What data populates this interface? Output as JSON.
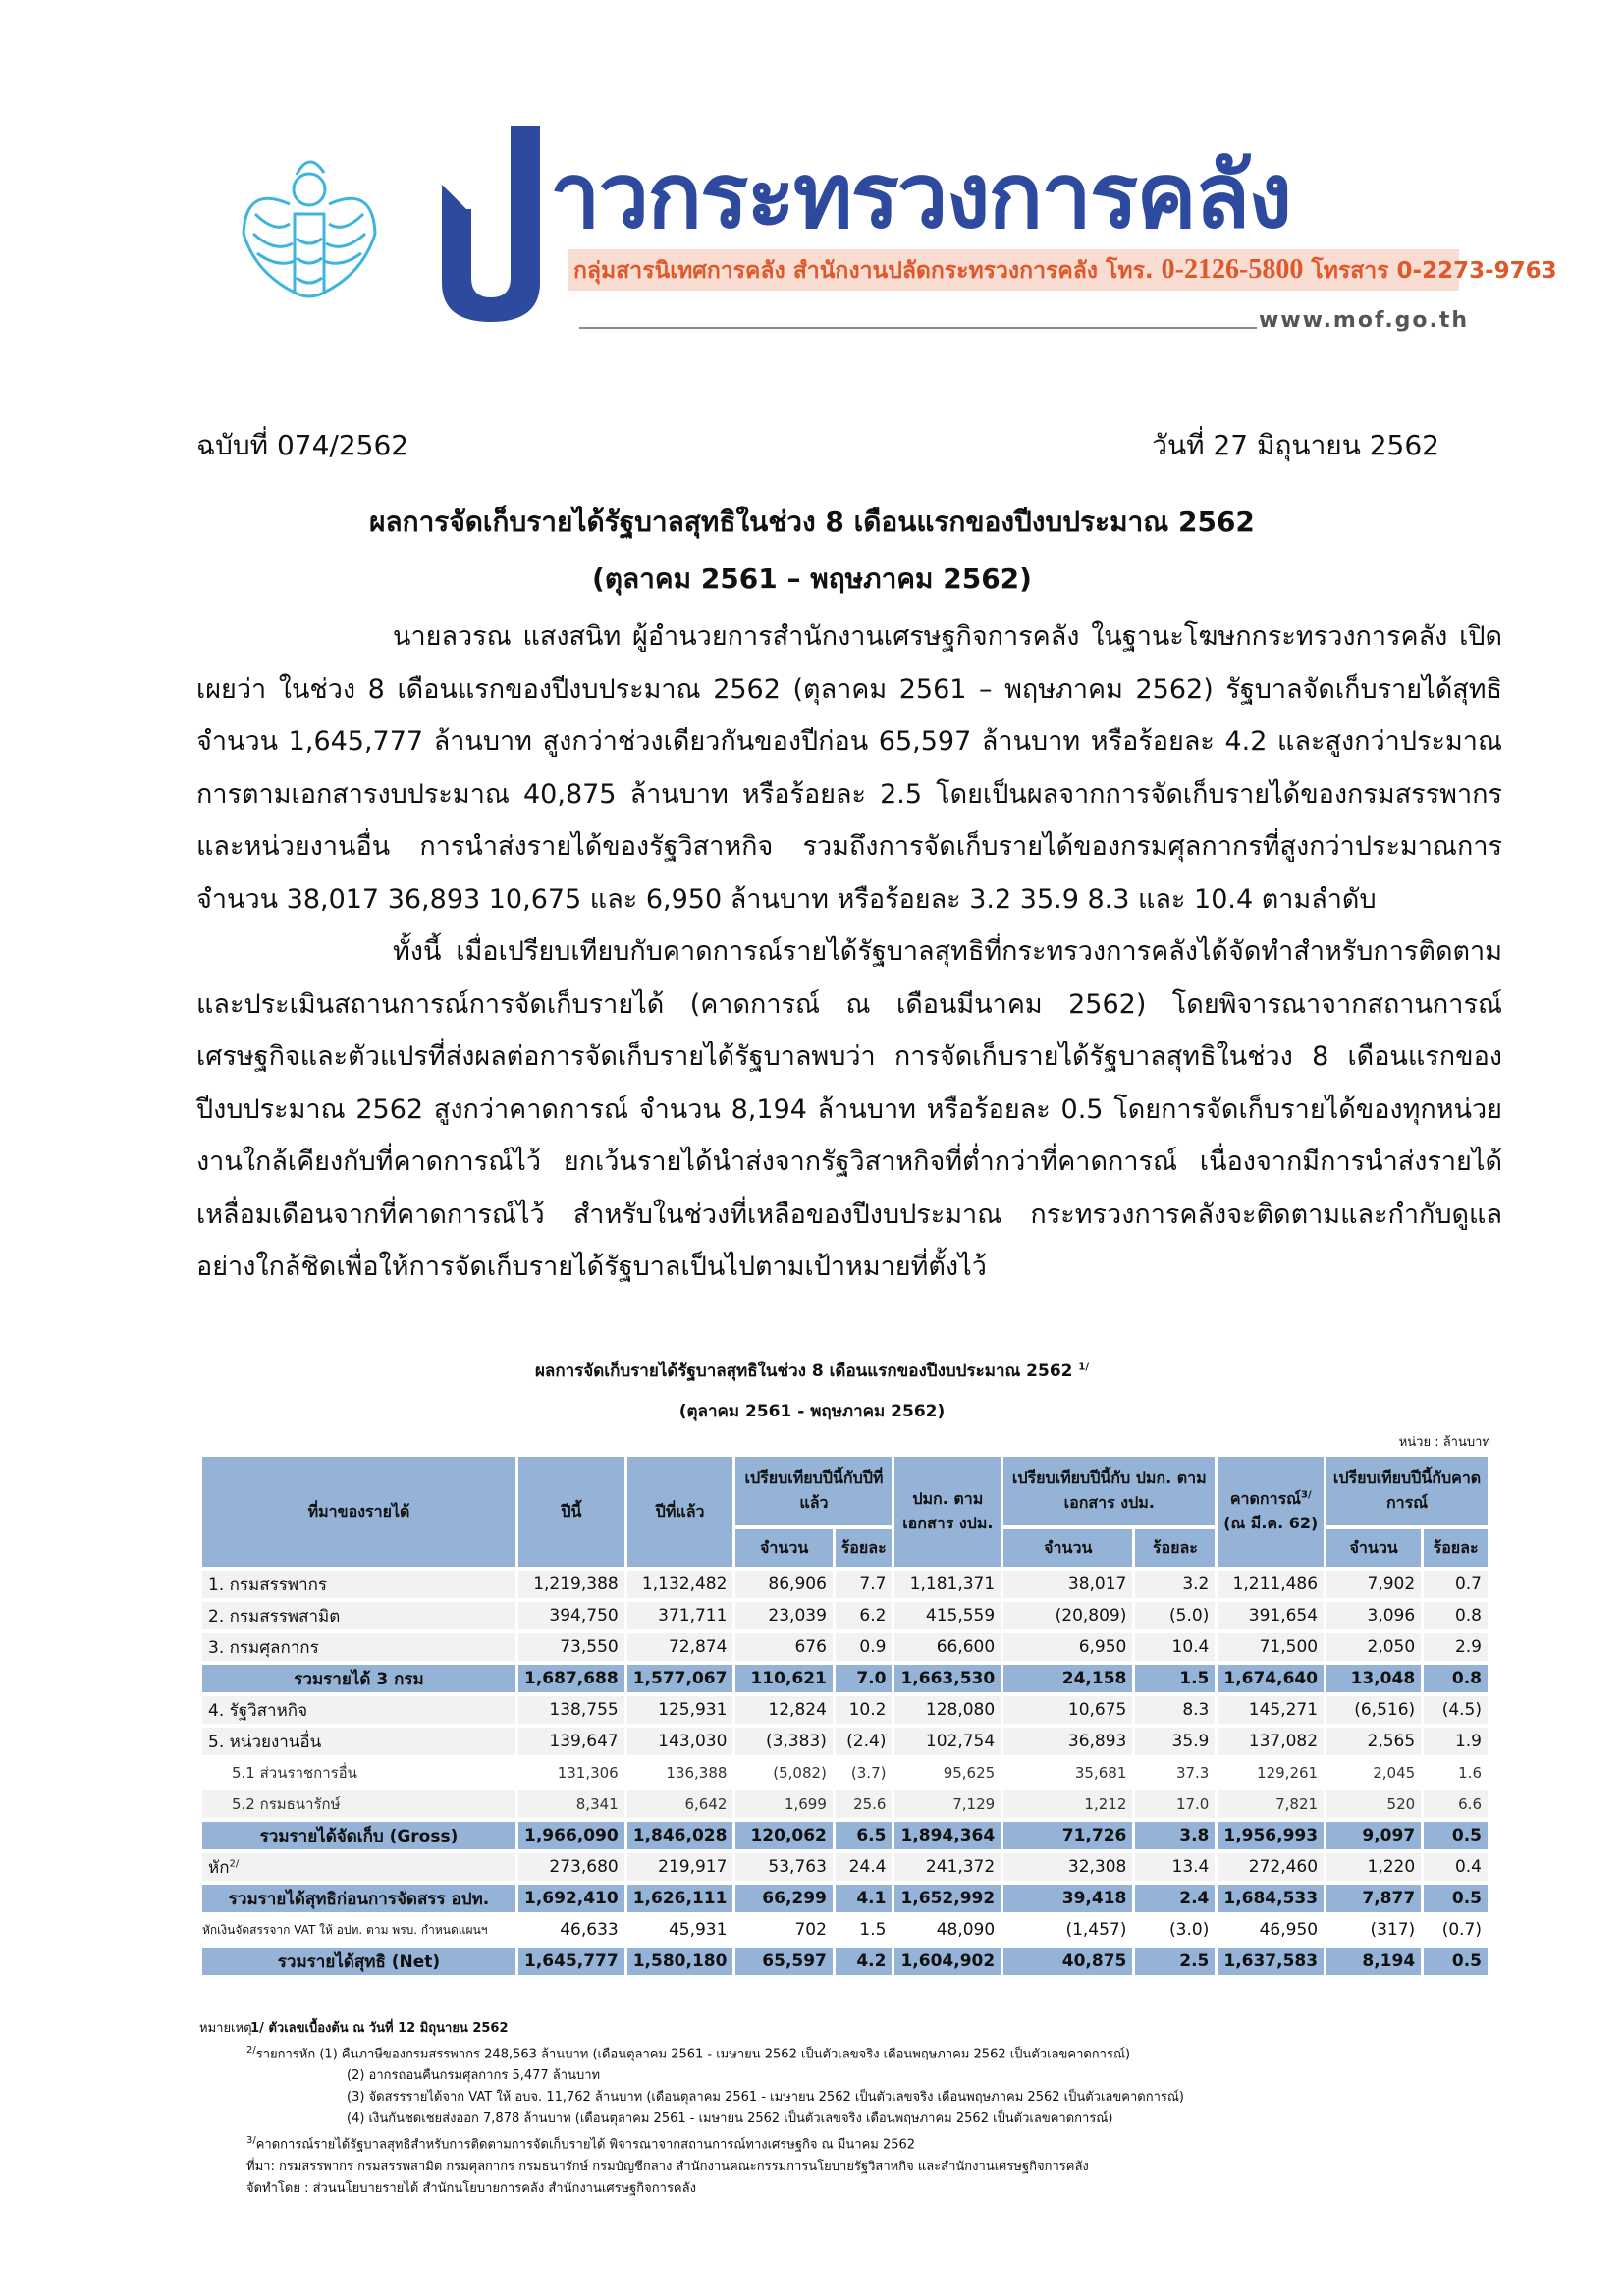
{
  "header": {
    "logo_text": "ข่าวกระทรวงการคลัง",
    "brand_rest": "าวกระทรวงการคลัง",
    "contact_prefix": "กลุ่มสารนิเทศการคลัง สำนักงานปลัดกระทรวงการคลัง โทร.",
    "phone": "0-2126-5800",
    "fax_label": "โทรสาร 0-2273-9763",
    "url": "www.mof.go.th",
    "colors": {
      "brand": "#2e4a9e",
      "contact": "#e0582a",
      "emblem": "#3fb3e0"
    }
  },
  "issue": "ฉบับที่ 074/2562",
  "date": "วันที่ 27 มิถุนายน 2562",
  "title": "ผลการจัดเก็บรายได้รัฐบาลสุทธิในช่วง 8 เดือนแรกของปีงบประมาณ 2562",
  "subtitle": "(ตุลาคม 2561 – พฤษภาคม 2562)",
  "paragraphs": [
    "นายลวรณ  แสงสนิท ผู้อำนวยการสำนักงานเศรษฐกิจการคลัง ในฐานะโฆษกกระทรวงการคลัง เปิดเผยว่า ในช่วง 8 เดือนแรกของปีงบประมาณ 2562 (ตุลาคม 2561 – พฤษภาคม 2562) รัฐบาลจัดเก็บรายได้สุทธิ จำนวน 1,645,777 ล้านบาท สูงกว่าช่วงเดียวกันของปีก่อน 65,597 ล้านบาท หรือร้อยละ 4.2 และสูงกว่าประมาณการตามเอกสารงบประมาณ 40,875 ล้านบาท หรือร้อยละ 2.5 โดยเป็นผลจากการจัดเก็บรายได้ของกรมสรรพากรและหน่วยงานอื่น การนำส่งรายได้ของรัฐวิสาหกิจ รวมถึงการจัดเก็บรายได้ของกรมศุลกากรที่สูงกว่าประมาณการ จำนวน 38,017 36,893 10,675 และ 6,950 ล้านบาท หรือร้อยละ 3.2 35.9 8.3 และ 10.4 ตามลำดับ",
    "ทั้งนี้ เมื่อเปรียบเทียบกับคาดการณ์รายได้รัฐบาลสุทธิที่กระทรวงการคลังได้จัดทำสำหรับการติดตามและประเมินสถานการณ์การจัดเก็บรายได้ (คาดการณ์ ณ เดือนมีนาคม 2562) โดยพิจารณาจากสถานการณ์เศรษฐกิจและตัวแปรที่ส่งผลต่อการจัดเก็บรายได้รัฐบาลพบว่า การจัดเก็บรายได้รัฐบาลสุทธิในช่วง 8 เดือนแรกของปีงบประมาณ 2562 สูงกว่าคาดการณ์ จำนวน 8,194 ล้านบาท หรือร้อยละ 0.5 โดยการจัดเก็บรายได้ของทุกหน่วยงานใกล้เคียงกับที่คาดการณ์ไว้ ยกเว้นรายได้นำส่งจากรัฐวิสาหกิจที่ต่ำกว่าที่คาดการณ์ เนื่องจากมีการนำส่งรายได้เหลื่อมเดือนจากที่คาดการณ์ไว้ สำหรับในช่วงที่เหลือของปีงบประมาณ กระทรวงการคลังจะติดตามและกำกับดูแลอย่างใกล้ชิดเพื่อให้การจัดเก็บรายได้รัฐบาลเป็นไปตามเป้าหมายที่ตั้งไว้"
  ],
  "table": {
    "title": "ผลการจัดเก็บรายได้รัฐบาลสุทธิในช่วง 8 เดือนแรกของปีงบประมาณ 2562",
    "title_note": "1/",
    "subtitle": "(ตุลาคม 2561 - พฤษภาคม 2562)",
    "unit": "หน่วย : ล้านบาท",
    "headers": {
      "source": "ที่มาของรายได้",
      "this_year": "ปีนี้",
      "last_year": "ปีที่แล้ว",
      "vs_last_year": "เปรียบเทียบปีนี้กับปีที่แล้ว",
      "budget": "ปมก. ตามเอกสาร งปม.",
      "vs_budget": "เปรียบเทียบปีนี้กับ ปมก. ตามเอกสาร งปม.",
      "forecast": "คาดการณ์",
      "forecast_note": "3/",
      "forecast_sub": "(ณ มี.ค. 62)",
      "vs_forecast": "เปรียบเทียบปีนี้กับคาดการณ์",
      "amount": "จำนวน",
      "percent": "ร้อยละ"
    },
    "rows": [
      {
        "type": "item",
        "label": "1. กรมสรรพากร",
        "values": [
          "1,219,388",
          "1,132,482",
          "86,906",
          "7.7",
          "1,181,371",
          "38,017",
          "3.2",
          "1,211,486",
          "7,902",
          "0.7"
        ]
      },
      {
        "type": "item",
        "label": "2. กรมสรรพสามิต",
        "values": [
          "394,750",
          "371,711",
          "23,039",
          "6.2",
          "415,559",
          "(20,809)",
          "(5.0)",
          "391,654",
          "3,096",
          "0.8"
        ]
      },
      {
        "type": "item",
        "label": "3. กรมศุลกากร",
        "values": [
          "73,550",
          "72,874",
          "676",
          "0.9",
          "66,600",
          "6,950",
          "10.4",
          "71,500",
          "2,050",
          "2.9"
        ]
      },
      {
        "type": "total",
        "label": "รวมรายได้ 3 กรม",
        "values": [
          "1,687,688",
          "1,577,067",
          "110,621",
          "7.0",
          "1,663,530",
          "24,158",
          "1.5",
          "1,674,640",
          "13,048",
          "0.8"
        ]
      },
      {
        "type": "item",
        "label": "4. รัฐวิสาหกิจ",
        "values": [
          "138,755",
          "125,931",
          "12,824",
          "10.2",
          "128,080",
          "10,675",
          "8.3",
          "145,271",
          "(6,516)",
          "(4.5)"
        ]
      },
      {
        "type": "item",
        "label": "5. หน่วยงานอื่น",
        "values": [
          "139,647",
          "143,030",
          "(3,383)",
          "(2.4)",
          "102,754",
          "36,893",
          "35.9",
          "137,082",
          "2,565",
          "1.9"
        ]
      },
      {
        "type": "sub",
        "label": "5.1  ส่วนราชการอื่น",
        "values": [
          "131,306",
          "136,388",
          "(5,082)",
          "(3.7)",
          "95,625",
          "35,681",
          "37.3",
          "129,261",
          "2,045",
          "1.6"
        ]
      },
      {
        "type": "sub2",
        "label": "5.2  กรมธนารักษ์",
        "values": [
          "8,341",
          "6,642",
          "1,699",
          "25.6",
          "7,129",
          "1,212",
          "17.0",
          "7,821",
          "520",
          "6.6"
        ]
      },
      {
        "type": "total",
        "label": "รวมรายได้จัดเก็บ (Gross)",
        "values": [
          "1,966,090",
          "1,846,028",
          "120,062",
          "6.5",
          "1,894,364",
          "71,726",
          "3.8",
          "1,956,993",
          "9,097",
          "0.5"
        ]
      },
      {
        "type": "item",
        "label": "หัก",
        "note": "2/",
        "values": [
          "273,680",
          "219,917",
          "53,763",
          "24.4",
          "241,372",
          "32,308",
          "13.4",
          "272,460",
          "1,220",
          "0.4"
        ]
      },
      {
        "type": "total",
        "label": "รวมรายได้สุทธิก่อนการจัดสรร อปท.",
        "values": [
          "1,692,410",
          "1,626,111",
          "66,299",
          "4.1",
          "1,652,992",
          "39,418",
          "2.4",
          "1,684,533",
          "7,877",
          "0.5"
        ]
      },
      {
        "type": "plain",
        "label": "หักเงินจัดสรรจาก VAT ให้ อปท. ตาม พรบ. กำหนดแผนฯ",
        "values": [
          "46,633",
          "45,931",
          "702",
          "1.5",
          "48,090",
          "(1,457)",
          "(3.0)",
          "46,950",
          "(317)",
          "(0.7)"
        ]
      },
      {
        "type": "total",
        "label": "รวมรายได้สุทธิ (Net)",
        "values": [
          "1,645,777",
          "1,580,180",
          "65,597",
          "4.2",
          "1,604,902",
          "40,875",
          "2.5",
          "1,637,583",
          "8,194",
          "0.5"
        ]
      }
    ],
    "colors": {
      "header": "#95b3d7",
      "row": "#f2f2f2"
    }
  },
  "notes": {
    "label": "หมายเหตุ",
    "n1": "1/  ตัวเลขเบื้องต้น ณ วันที่ 12 มิถุนายน 2562",
    "n2_mark": "2/",
    "n2": "รายการหัก  (1) คืนภาษีของกรมสรรพากร 248,563 ล้านบาท (เดือนตุลาคม 2561 - เมษายน 2562 เป็นตัวเลขจริง เดือนพฤษภาคม 2562 เป็นตัวเลขคาดการณ์)",
    "n2_2": "(2) อากรถอนคืนกรมศุลกากร 5,477 ล้านบาท",
    "n2_3": "(3) จัดสรรรายได้จาก VAT ให้ อบจ. 11,762 ล้านบาท (เดือนตุลาคม 2561 - เมษายน 2562 เป็นตัวเลขจริง เดือนพฤษภาคม 2562 เป็นตัวเลขคาดการณ์)",
    "n2_4": "(4) เงินกันชดเชยส่งออก 7,878 ล้านบาท (เดือนตุลาคม 2561 - เมษายน 2562 เป็นตัวเลขจริง เดือนพฤษภาคม 2562 เป็นตัวเลขคาดการณ์)",
    "n3_mark": "3/",
    "n3": "คาดการณ์รายได้รัฐบาลสุทธิสำหรับการติดตามการจัดเก็บรายได้ พิจารณาจากสถานการณ์ทางเศรษฐกิจ ณ มีนาคม 2562",
    "source": "ที่มา: กรมสรรพากร กรมสรรพสามิต กรมศุลกากร กรมธนารักษ์ กรมบัญชีกลาง สำนักงานคณะกรรมการนโยบายรัฐวิสาหกิจ และสำนักงานเศรษฐกิจการคลัง",
    "prepared": "จัดทำโดย  :  ส่วนนโยบายรายได้ สำนักนโยบายการคลัง  สำนักงานเศรษฐกิจการคลัง"
  }
}
